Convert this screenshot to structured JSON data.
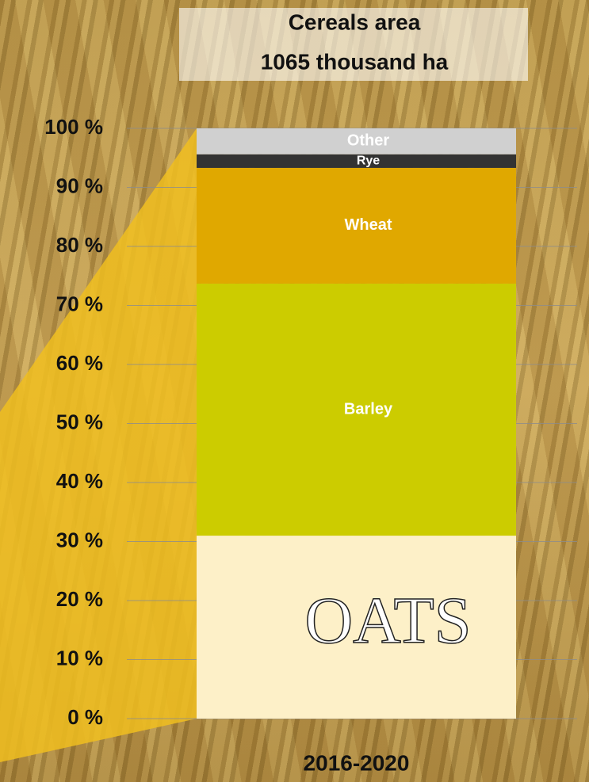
{
  "chart_data": {
    "type": "stacked_bar",
    "title": "Cereals area",
    "subtitle": "1065 thousand ha",
    "categories": [
      "2016-2020"
    ],
    "series": [
      {
        "name": "OATS",
        "color": "#fdf0c8",
        "values": [
          31.0
        ]
      },
      {
        "name": "Barley",
        "color": "#cccc00",
        "values": [
          42.7
        ]
      },
      {
        "name": "Wheat",
        "color": "#e0a800",
        "values": [
          19.6
        ]
      },
      {
        "name": "Rye",
        "color": "#333333",
        "values": [
          2.3
        ]
      },
      {
        "name": "Other",
        "color": "#d0d0d0",
        "values": [
          4.4
        ]
      }
    ],
    "ylim": [
      0,
      100
    ],
    "yticks": [
      {
        "value": 0,
        "label": "0 %"
      },
      {
        "value": 10,
        "label": "10 %"
      },
      {
        "value": 20,
        "label": "20 %"
      },
      {
        "value": 30,
        "label": "30 %"
      },
      {
        "value": 40,
        "label": "40 %"
      },
      {
        "value": 50,
        "label": "50 %"
      },
      {
        "value": 60,
        "label": "60 %"
      },
      {
        "value": 70,
        "label": "70 %"
      },
      {
        "value": 80,
        "label": "80 %"
      },
      {
        "value": 90,
        "label": "90 %"
      },
      {
        "value": 100,
        "label": "100 %"
      }
    ],
    "grid": true
  }
}
